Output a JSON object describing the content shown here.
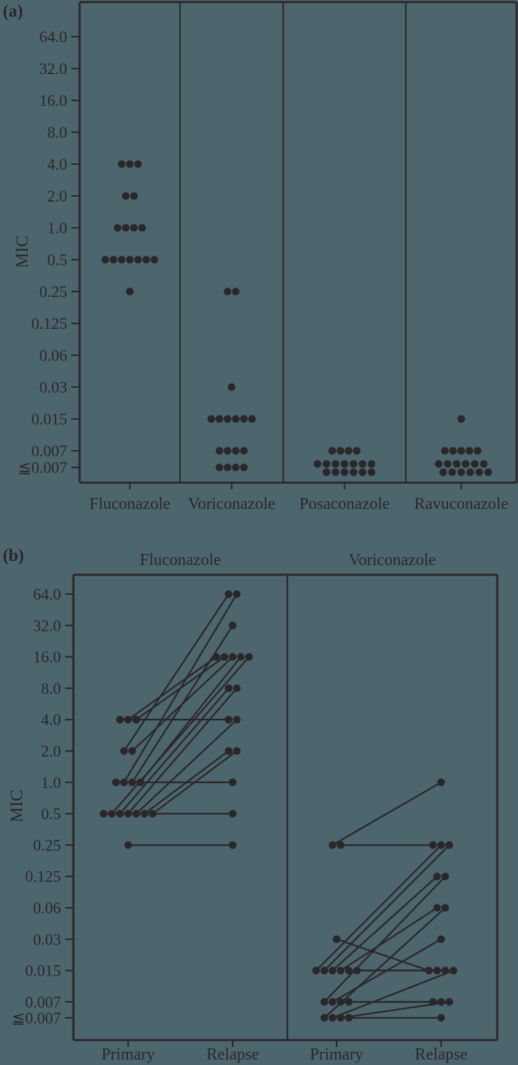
{
  "figure": {
    "bg_color": "#4d666d",
    "ink_color": "#2a272b",
    "panel_a_label": "(a)",
    "panel_b_label": "(b)"
  },
  "chart_data": [
    {
      "type": "scatter",
      "panel": "a",
      "subtype": "dot-strip-plot",
      "ylabel": "MIC",
      "yticks": [
        "64.0",
        "32.0",
        "16.0",
        "8.0",
        "4.0",
        "2.0",
        "1.0",
        "0.5",
        "0.25",
        "0.125",
        "0.06",
        "0.03",
        "0.015",
        "0.007",
        "≦0.007"
      ],
      "categories": [
        "Fluconazole",
        "Voriconazole",
        "Posaconazole",
        "Ravuconazole"
      ],
      "series": [
        {
          "category": "Fluconazole",
          "points": [
            {
              "mic": "4.0",
              "count": 3
            },
            {
              "mic": "2.0",
              "count": 2
            },
            {
              "mic": "1.0",
              "count": 4
            },
            {
              "mic": "0.5",
              "count": 7
            },
            {
              "mic": "0.25",
              "count": 1
            }
          ]
        },
        {
          "category": "Voriconazole",
          "points": [
            {
              "mic": "0.25",
              "count": 2
            },
            {
              "mic": "0.03",
              "count": 1
            },
            {
              "mic": "0.015",
              "count": 6
            },
            {
              "mic": "0.007",
              "count": 4
            },
            {
              "mic": "≦0.007",
              "count": 4
            }
          ]
        },
        {
          "category": "Posaconazole",
          "points": [
            {
              "mic": "0.007",
              "count": 4
            },
            {
              "mic": "≦0.007",
              "count": 13
            }
          ]
        },
        {
          "category": "Ravuconazole",
          "points": [
            {
              "mic": "0.015",
              "count": 1
            },
            {
              "mic": "0.007",
              "count": 5
            },
            {
              "mic": "≦0.007",
              "count": 12
            }
          ]
        }
      ]
    },
    {
      "type": "paired-line",
      "panel": "b",
      "ylabel": "MIC",
      "yticks": [
        "64.0",
        "32.0",
        "16.0",
        "8.0",
        "4.0",
        "2.0",
        "1.0",
        "0.5",
        "0.25",
        "0.125",
        "0.06",
        "0.03",
        "0.015",
        "0.007",
        "≦0.007"
      ],
      "xcats": [
        "Primary",
        "Relapse"
      ],
      "groups": [
        {
          "name": "Fluconazole",
          "pairs": [
            [
              "4.0",
              "4.0"
            ],
            [
              "4.0",
              "16.0"
            ],
            [
              "4.0",
              "16.0"
            ],
            [
              "2.0",
              "64.0"
            ],
            [
              "2.0",
              "16.0"
            ],
            [
              "1.0",
              "1.0"
            ],
            [
              "1.0",
              "64.0"
            ],
            [
              "1.0",
              "32.0"
            ],
            [
              "1.0",
              "16.0"
            ],
            [
              "0.5",
              "0.5"
            ],
            [
              "0.5",
              "16.0"
            ],
            [
              "0.5",
              "8.0"
            ],
            [
              "0.5",
              "8.0"
            ],
            [
              "0.5",
              "4.0"
            ],
            [
              "0.5",
              "2.0"
            ],
            [
              "0.5",
              "2.0"
            ],
            [
              "0.25",
              "0.25"
            ]
          ]
        },
        {
          "name": "Voriconazole",
          "pairs": [
            [
              "0.25",
              "1.0"
            ],
            [
              "0.25",
              "0.25"
            ],
            [
              "0.03",
              "0.015"
            ],
            [
              "0.015",
              "0.25"
            ],
            [
              "0.015",
              "0.25"
            ],
            [
              "0.015",
              "0.125"
            ],
            [
              "0.015",
              "0.06"
            ],
            [
              "0.015",
              "0.015"
            ],
            [
              "0.015",
              "0.015"
            ],
            [
              "0.007",
              "0.125"
            ],
            [
              "0.007",
              "0.03"
            ],
            [
              "0.007",
              "0.007"
            ],
            [
              "0.007",
              "0.007"
            ],
            [
              "≦0.007",
              "0.06"
            ],
            [
              "≦0.007",
              "0.015"
            ],
            [
              "≦0.007",
              "0.007"
            ],
            [
              "≦0.007",
              "≦0.007"
            ]
          ]
        }
      ]
    }
  ]
}
